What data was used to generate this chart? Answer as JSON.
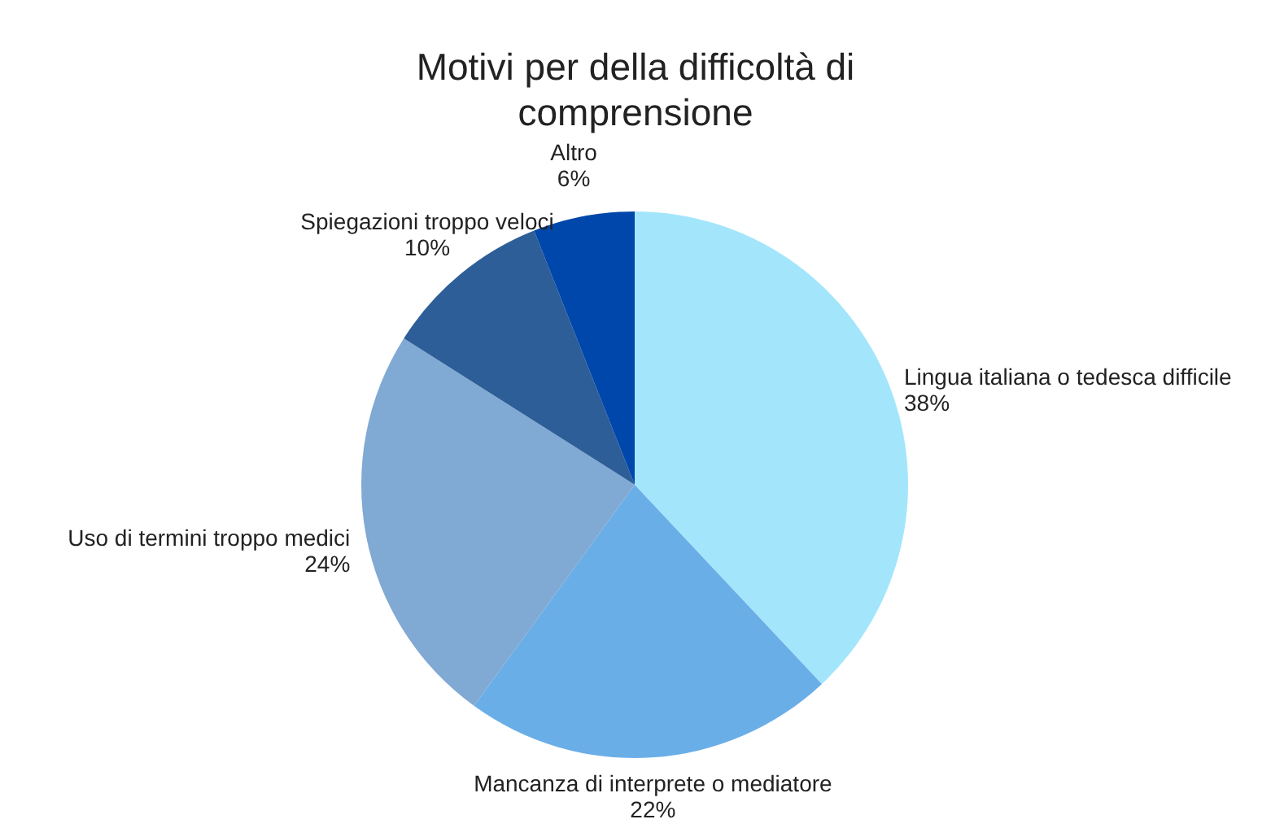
{
  "chart_data": {
    "type": "pie",
    "title": "Motivi per della difficoltà di comprensione",
    "categories": [
      "Lingua italiana o tedesca difficile",
      "Mancanza di interprete o mediatore",
      "Uso di termini troppo medici",
      "Spiegazioni troppo veloci",
      "Altro"
    ],
    "values": [
      38,
      22,
      24,
      10,
      6
    ],
    "value_labels": [
      "38%",
      "22%",
      "24%",
      "10%",
      "6%"
    ],
    "colors": [
      "#a3e6fc",
      "#6aaee8",
      "#80a9d3",
      "#2d5e98",
      "#0047ab"
    ]
  }
}
